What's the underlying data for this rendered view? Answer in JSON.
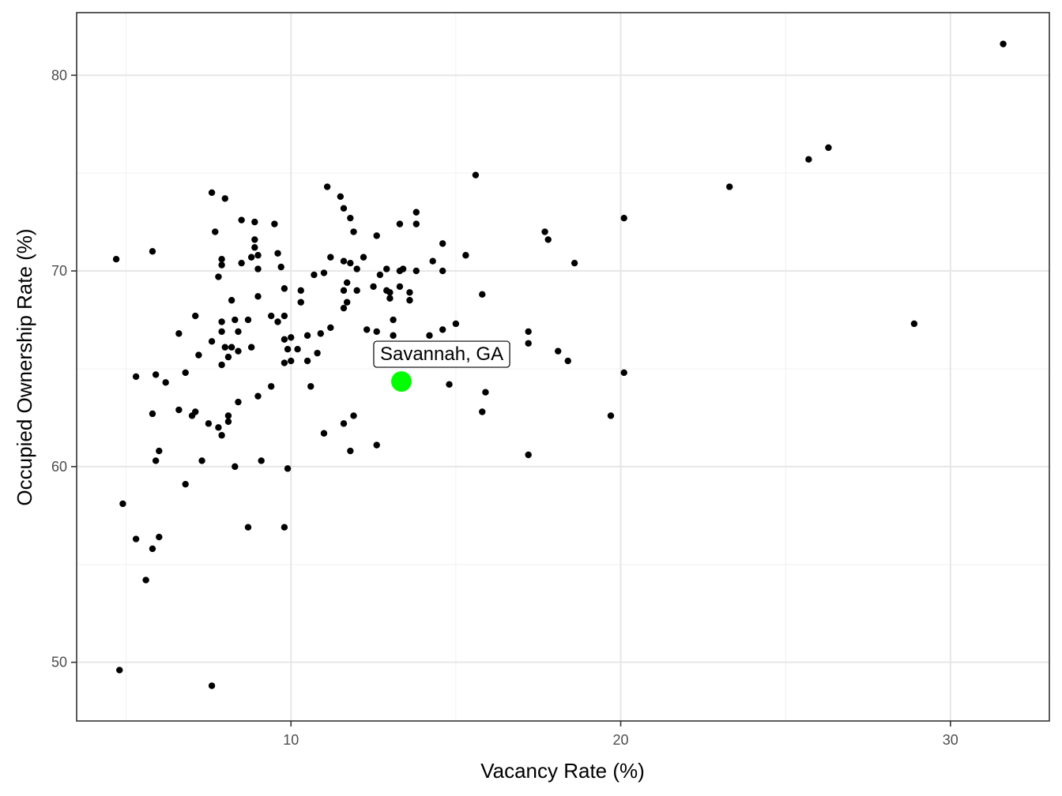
{
  "chart_data": {
    "type": "scatter",
    "title": "",
    "xlabel": "Vacancy Rate (%)",
    "ylabel": "Occupied Ownership Rate (%)",
    "xlim": [
      3.5,
      33.0
    ],
    "ylim": [
      47.0,
      83.2
    ],
    "x_major_ticks": [
      10,
      20,
      30
    ],
    "x_minor_ticks": [
      5,
      15,
      25
    ],
    "y_major_ticks": [
      50,
      60,
      70,
      80
    ],
    "y_minor_ticks": [
      55,
      65,
      75
    ],
    "x_tick_labels": [
      "10",
      "20",
      "30"
    ],
    "y_tick_labels": [
      "50",
      "60",
      "70",
      "80"
    ],
    "grid": true,
    "theme": "bw",
    "point_color": "#000000",
    "highlight": {
      "label": "Savannah, GA",
      "x": 13.35,
      "y": 64.35,
      "color": "#00ff00"
    },
    "points": [
      [
        31.6,
        81.6
      ],
      [
        26.3,
        76.3
      ],
      [
        25.7,
        75.7
      ],
      [
        23.3,
        74.3
      ],
      [
        20.1,
        72.7
      ],
      [
        17.7,
        72.0
      ],
      [
        17.8,
        71.6
      ],
      [
        18.6,
        70.4
      ],
      [
        15.6,
        74.9
      ],
      [
        15.3,
        70.8
      ],
      [
        14.6,
        71.4
      ],
      [
        14.6,
        70.0
      ],
      [
        14.3,
        70.5
      ],
      [
        13.8,
        73.0
      ],
      [
        13.8,
        72.4
      ],
      [
        13.8,
        70.0
      ],
      [
        13.3,
        72.4
      ],
      [
        12.6,
        71.8
      ],
      [
        12.2,
        70.7
      ],
      [
        11.1,
        74.3
      ],
      [
        11.5,
        73.8
      ],
      [
        11.6,
        73.2
      ],
      [
        11.8,
        72.7
      ],
      [
        11.9,
        72.0
      ],
      [
        11.2,
        70.7
      ],
      [
        11.6,
        70.5
      ],
      [
        11.8,
        70.4
      ],
      [
        12.0,
        70.1
      ],
      [
        13.3,
        70.0
      ],
      [
        13.4,
        70.1
      ],
      [
        12.9,
        70.1
      ],
      [
        12.7,
        69.8
      ],
      [
        11.0,
        69.9
      ],
      [
        10.7,
        69.8
      ],
      [
        10.3,
        69.0
      ],
      [
        9.8,
        69.1
      ],
      [
        9.6,
        70.9
      ],
      [
        9.7,
        70.2
      ],
      [
        9.0,
        70.1
      ],
      [
        9.0,
        70.8
      ],
      [
        8.9,
        71.2
      ],
      [
        8.9,
        71.6
      ],
      [
        8.9,
        72.5
      ],
      [
        9.5,
        72.4
      ],
      [
        8.5,
        72.6
      ],
      [
        8.0,
        73.7
      ],
      [
        7.6,
        74.0
      ],
      [
        7.7,
        72.0
      ],
      [
        7.9,
        70.6
      ],
      [
        7.9,
        70.3
      ],
      [
        7.8,
        69.7
      ],
      [
        8.5,
        70.4
      ],
      [
        8.8,
        70.7
      ],
      [
        4.7,
        70.6
      ],
      [
        5.8,
        71.0
      ],
      [
        12.5,
        69.2
      ],
      [
        12.9,
        69.0
      ],
      [
        13.0,
        68.9
      ],
      [
        13.3,
        69.2
      ],
      [
        13.6,
        68.9
      ],
      [
        13.0,
        68.6
      ],
      [
        13.6,
        68.5
      ],
      [
        11.7,
        69.4
      ],
      [
        11.6,
        69.0
      ],
      [
        12.0,
        69.0
      ],
      [
        11.7,
        68.4
      ],
      [
        11.6,
        68.1
      ],
      [
        10.3,
        68.4
      ],
      [
        9.0,
        68.7
      ],
      [
        8.2,
        68.5
      ],
      [
        7.1,
        67.7
      ],
      [
        9.4,
        67.7
      ],
      [
        9.8,
        67.7
      ],
      [
        9.6,
        67.4
      ],
      [
        8.7,
        67.5
      ],
      [
        7.9,
        67.4
      ],
      [
        8.3,
        67.5
      ],
      [
        8.4,
        66.9
      ],
      [
        7.9,
        66.9
      ],
      [
        13.1,
        67.5
      ],
      [
        12.3,
        67.0
      ],
      [
        12.6,
        66.9
      ],
      [
        13.1,
        66.7
      ],
      [
        14.2,
        66.7
      ],
      [
        14.6,
        67.0
      ],
      [
        15.0,
        67.3
      ],
      [
        11.2,
        67.1
      ],
      [
        10.9,
        66.8
      ],
      [
        10.5,
        66.7
      ],
      [
        10.0,
        66.6
      ],
      [
        9.8,
        66.5
      ],
      [
        7.6,
        66.4
      ],
      [
        6.6,
        66.8
      ],
      [
        8.0,
        66.1
      ],
      [
        8.2,
        66.1
      ],
      [
        8.4,
        65.9
      ],
      [
        8.8,
        66.1
      ],
      [
        9.9,
        66.0
      ],
      [
        10.2,
        66.0
      ],
      [
        10.8,
        65.8
      ],
      [
        8.1,
        65.6
      ],
      [
        7.9,
        65.2
      ],
      [
        7.2,
        65.7
      ],
      [
        10.5,
        65.4
      ],
      [
        10.0,
        65.4
      ],
      [
        9.8,
        65.3
      ],
      [
        17.2,
        66.9
      ],
      [
        17.2,
        66.3
      ],
      [
        18.1,
        65.9
      ],
      [
        18.4,
        65.4
      ],
      [
        15.8,
        68.8
      ],
      [
        20.1,
        64.8
      ],
      [
        6.8,
        64.8
      ],
      [
        5.3,
        64.6
      ],
      [
        5.9,
        64.7
      ],
      [
        6.2,
        64.3
      ],
      [
        10.6,
        64.1
      ],
      [
        9.4,
        64.1
      ],
      [
        14.8,
        64.2
      ],
      [
        15.9,
        63.8
      ],
      [
        9.0,
        63.6
      ],
      [
        8.4,
        63.3
      ],
      [
        5.8,
        62.7
      ],
      [
        6.6,
        62.9
      ],
      [
        7.0,
        62.6
      ],
      [
        7.1,
        62.8
      ],
      [
        7.5,
        62.2
      ],
      [
        7.8,
        62.0
      ],
      [
        7.9,
        61.6
      ],
      [
        8.1,
        62.3
      ],
      [
        8.1,
        62.6
      ],
      [
        11.0,
        61.7
      ],
      [
        11.6,
        62.2
      ],
      [
        11.9,
        62.6
      ],
      [
        15.8,
        62.8
      ],
      [
        19.7,
        62.6
      ],
      [
        12.6,
        61.1
      ],
      [
        11.8,
        60.8
      ],
      [
        17.2,
        60.6
      ],
      [
        6.0,
        60.8
      ],
      [
        5.9,
        60.3
      ],
      [
        7.3,
        60.3
      ],
      [
        8.3,
        60.0
      ],
      [
        9.1,
        60.3
      ],
      [
        9.9,
        59.9
      ],
      [
        6.8,
        59.1
      ],
      [
        28.9,
        67.3
      ],
      [
        4.9,
        58.1
      ],
      [
        5.3,
        56.3
      ],
      [
        6.0,
        56.4
      ],
      [
        5.8,
        55.8
      ],
      [
        8.7,
        56.9
      ],
      [
        9.8,
        56.9
      ],
      [
        5.6,
        54.2
      ],
      [
        4.8,
        49.6
      ],
      [
        7.6,
        48.8
      ]
    ]
  }
}
